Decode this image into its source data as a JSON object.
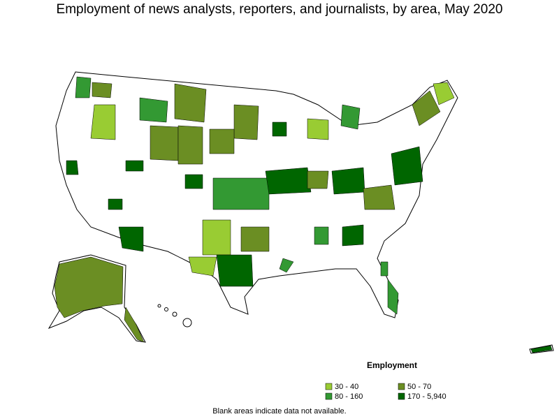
{
  "title": "Employment of news analysts, reporters, and journalists, by area, May 2020",
  "legend": {
    "title": "Employment",
    "items": [
      {
        "label": "30 - 40",
        "color": "#99cc33"
      },
      {
        "label": "50 - 70",
        "color": "#6b8e23"
      },
      {
        "label": "80 - 160",
        "color": "#339933"
      },
      {
        "label": "170 - 5,940",
        "color": "#006600"
      }
    ]
  },
  "note": "Blank areas indicate data not available."
}
